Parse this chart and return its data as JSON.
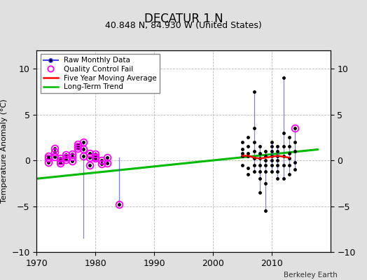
{
  "title": "DECATUR 1 N",
  "subtitle": "40.848 N, 84.930 W (United States)",
  "credit": "Berkeley Earth",
  "ylabel": "Temperature Anomaly (°C)",
  "xlim": [
    1970,
    2020
  ],
  "ylim": [
    -10,
    12
  ],
  "yticks": [
    -10,
    -5,
    0,
    5,
    10
  ],
  "xticks": [
    1970,
    1980,
    1990,
    2000,
    2010
  ],
  "background_color": "#e0e0e0",
  "plot_bg_color": "#ffffff",
  "grid_color": "#b0b0b0",
  "raw_data_years": [
    1972,
    1972,
    1972,
    1973,
    1973,
    1973,
    1974,
    1974,
    1974,
    1975,
    1975,
    1975,
    1976,
    1976,
    1976,
    1977,
    1977,
    1977,
    1978,
    1978,
    1978,
    1979,
    1979,
    1979,
    1980,
    1980,
    1980,
    1981,
    1981,
    1982,
    1982,
    1984,
    2005,
    2005,
    2005,
    2005,
    2005,
    2006,
    2006,
    2006,
    2006,
    2006,
    2006,
    2007,
    2007,
    2007,
    2007,
    2007,
    2007,
    2007,
    2008,
    2008,
    2008,
    2008,
    2008,
    2008,
    2008,
    2009,
    2009,
    2009,
    2009,
    2009,
    2009,
    2009,
    2010,
    2010,
    2010,
    2010,
    2010,
    2010,
    2010,
    2011,
    2011,
    2011,
    2011,
    2011,
    2011,
    2011,
    2012,
    2012,
    2012,
    2012,
    2012,
    2012,
    2013,
    2013,
    2013,
    2013,
    2013,
    2013,
    2014,
    2014,
    2014,
    2014,
    2014
  ],
  "raw_data_values": [
    0.5,
    0.2,
    -0.2,
    0.9,
    1.3,
    0.4,
    -0.1,
    0.2,
    -0.3,
    0.3,
    0.6,
    0.1,
    -0.1,
    0.4,
    0.7,
    1.3,
    1.8,
    1.5,
    0.5,
    2.0,
    1.2,
    0.8,
    0.3,
    -0.5,
    0.4,
    0.7,
    0.2,
    0.0,
    -0.4,
    -0.3,
    0.3,
    -4.8,
    0.5,
    1.2,
    2.0,
    0.8,
    -0.5,
    0.8,
    1.5,
    2.5,
    0.5,
    -0.8,
    -1.5,
    7.5,
    3.5,
    2.0,
    1.0,
    0.2,
    -0.5,
    -1.2,
    1.5,
    0.8,
    0.2,
    -0.5,
    -1.2,
    -2.0,
    -3.5,
    1.0,
    0.5,
    0.0,
    -0.5,
    -1.2,
    -2.5,
    -5.5,
    2.0,
    1.5,
    1.0,
    0.5,
    0.0,
    -0.5,
    -1.2,
    1.5,
    1.0,
    0.5,
    0.0,
    -0.5,
    -1.2,
    -2.0,
    9.0,
    3.0,
    1.5,
    0.5,
    -0.5,
    -2.0,
    2.5,
    1.5,
    0.8,
    0.2,
    -0.5,
    -1.5,
    3.5,
    2.0,
    1.0,
    -0.2,
    -1.0
  ],
  "qc_fail_years": [
    1972,
    1972,
    1972,
    1973,
    1973,
    1973,
    1974,
    1974,
    1974,
    1975,
    1975,
    1975,
    1976,
    1976,
    1976,
    1977,
    1977,
    1977,
    1978,
    1978,
    1978,
    1979,
    1979,
    1979,
    1980,
    1980,
    1980,
    1981,
    1981,
    1982,
    1982,
    1984,
    2014
  ],
  "qc_fail_values": [
    0.5,
    0.2,
    -0.2,
    0.9,
    1.3,
    0.4,
    -0.1,
    0.2,
    -0.3,
    0.3,
    0.6,
    0.1,
    -0.1,
    0.4,
    0.7,
    1.3,
    1.8,
    1.5,
    0.5,
    2.0,
    1.2,
    0.8,
    0.3,
    -0.5,
    0.4,
    0.7,
    0.2,
    0.0,
    -0.4,
    -0.3,
    0.3,
    -4.8,
    3.5
  ],
  "spike_lines": [
    {
      "x": 1978,
      "y1": 2.0,
      "y2": -8.5
    },
    {
      "x": 1984,
      "y1": 0.3,
      "y2": -4.8
    },
    {
      "x": 2007,
      "y1": 7.5,
      "y2": -1.2
    },
    {
      "x": 2008,
      "y1": 1.5,
      "y2": -3.5
    },
    {
      "x": 2009,
      "y1": 1.0,
      "y2": -5.5
    },
    {
      "x": 2010,
      "y1": 2.0,
      "y2": -1.2
    },
    {
      "x": 2011,
      "y1": 1.5,
      "y2": -2.0
    },
    {
      "x": 2012,
      "y1": 9.0,
      "y2": -2.0
    },
    {
      "x": 2013,
      "y1": 2.5,
      "y2": -1.5
    },
    {
      "x": 2014,
      "y1": 3.5,
      "y2": -1.0
    }
  ],
  "moving_avg_years": [
    2005,
    2006,
    2007,
    2008,
    2009,
    2010,
    2011,
    2012,
    2013
  ],
  "moving_avg_values": [
    0.5,
    0.5,
    0.3,
    0.2,
    0.3,
    0.4,
    0.5,
    0.4,
    0.3
  ],
  "trend_x": [
    1970,
    2018
  ],
  "trend_y": [
    -2.0,
    1.2
  ],
  "colors": {
    "raw_line": "#4444ff",
    "raw_marker": "#000000",
    "qc_fail": "#ff00ff",
    "moving_avg": "#ff0000",
    "trend": "#00bb00"
  },
  "title_fontsize": 12,
  "subtitle_fontsize": 9,
  "tick_fontsize": 9,
  "ylabel_fontsize": 8,
  "legend_fontsize": 7.5,
  "credit_fontsize": 7.5
}
